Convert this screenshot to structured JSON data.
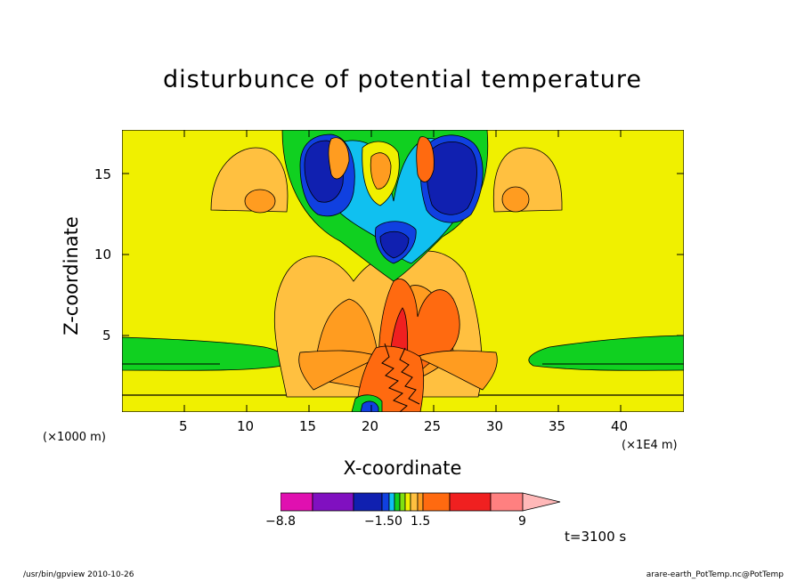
{
  "chart_data": {
    "type": "heatmap",
    "title": "disturbunce of potential temperature",
    "xlabel": "X-coordinate",
    "ylabel": "Z-coordinate",
    "x_unit": "(×1E4 m)",
    "y_unit": "(×1000 m)",
    "x_ticks": [
      "5",
      "10",
      "15",
      "20",
      "25",
      "30",
      "35",
      "40"
    ],
    "y_ticks": [
      "5",
      "10",
      "15"
    ],
    "xlim": [
      0,
      45
    ],
    "ylim": [
      0,
      17.5
    ],
    "grid": false,
    "colorbar": {
      "labels": [
        "−8.8",
        "−1.50",
        "1.5",
        "9"
      ],
      "colors": [
        "#e010b0",
        "#8010c0",
        "#1020b0",
        "#1040e0",
        "#10c0f0",
        "#10d020",
        "#80e010",
        "#f0f000",
        "#ffc040",
        "#ff9c20",
        "#ff6a10",
        "#f02020",
        "#ff8080",
        "#ffb8b8"
      ]
    },
    "time_label": "t=3100 s"
  },
  "footer": {
    "left": "/usr/bin/gpview   2010-10-26",
    "right": "arare-earth_PotTemp.nc@PotTemp"
  }
}
